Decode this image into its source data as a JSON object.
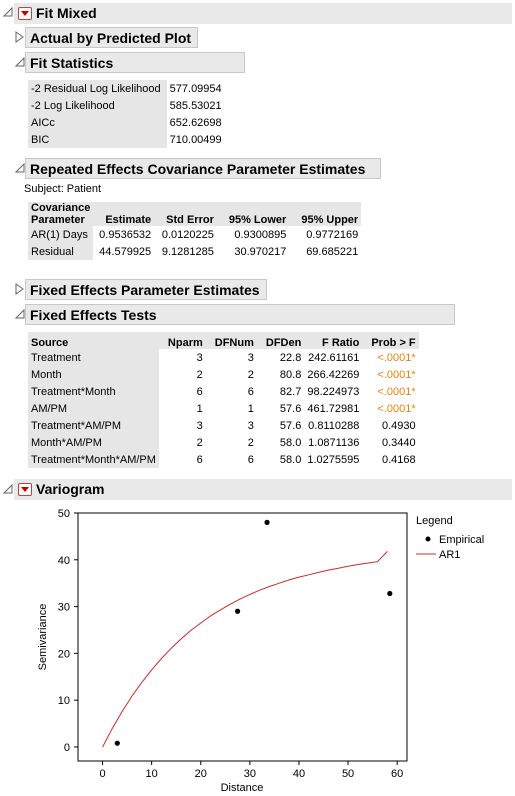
{
  "title": "Fit Mixed",
  "sections": {
    "actual_by_predicted": "Actual by Predicted Plot",
    "fit_statistics": "Fit Statistics",
    "repeated_effects": "Repeated Effects Covariance Parameter Estimates",
    "fixed_params": "Fixed Effects Parameter Estimates",
    "fixed_tests": "Fixed Effects Tests",
    "variogram": "Variogram"
  },
  "fit_statistics": [
    {
      "label": "-2 Residual Log Likelihood",
      "value": "577.09954"
    },
    {
      "label": "-2 Log Likelihood",
      "value": "585.53021"
    },
    {
      "label": "AICc",
      "value": "652.62698"
    },
    {
      "label": "BIC",
      "value": "710.00499"
    }
  ],
  "subject": "Subject: Patient",
  "cov_table": {
    "headers": [
      "Covariance\nParameter",
      "Estimate",
      "Std Error",
      "95% Lower",
      "95% Upper"
    ],
    "rows": [
      [
        "AR(1) Days",
        "0.9536532",
        "0.0120225",
        "0.9300895",
        "0.9772169"
      ],
      [
        "Residual",
        "44.579925",
        "9.1281285",
        "30.970217",
        "69.685221"
      ]
    ]
  },
  "tests_table": {
    "headers": [
      "Source",
      "Nparm",
      "DFNum",
      "DFDen",
      "F Ratio",
      "Prob > F"
    ],
    "rows": [
      [
        "Treatment",
        "3",
        "3",
        "22.8",
        "242.61161",
        "<.0001*"
      ],
      [
        "Month",
        "2",
        "2",
        "80.8",
        "266.42269",
        "<.0001*"
      ],
      [
        "Treatment*Month",
        "6",
        "6",
        "82.7",
        "98.224973",
        "<.0001*"
      ],
      [
        "AM/PM",
        "1",
        "1",
        "57.6",
        "461.72981",
        "<.0001*"
      ],
      [
        "Treatment*AM/PM",
        "3",
        "3",
        "57.6",
        "0.8110288",
        "0.4930"
      ],
      [
        "Month*AM/PM",
        "2",
        "2",
        "58.0",
        "1.0871136",
        "0.3440"
      ],
      [
        "Treatment*Month*AM/PM",
        "6",
        "6",
        "58.0",
        "1.0275595",
        "0.4168"
      ]
    ],
    "significant_color": "#e8830a"
  },
  "chart_data": {
    "type": "scatter",
    "xlabel": "Distance",
    "ylabel": "Semivariance",
    "xlim": [
      -5,
      62
    ],
    "ylim": [
      -3,
      50
    ],
    "xticks": [
      0,
      10,
      20,
      30,
      40,
      50,
      60
    ],
    "yticks": [
      0,
      10,
      20,
      30,
      40,
      50
    ],
    "legend_title": "Legend",
    "legend_placement": "right",
    "series": [
      {
        "name": "Empirical",
        "kind": "points",
        "color": "#000000",
        "x": [
          3,
          27.5,
          33.5,
          58.5
        ],
        "y": [
          0.8,
          29,
          48,
          32.8
        ]
      },
      {
        "name": "AR1",
        "kind": "line",
        "color": "#d62728",
        "x": [
          0,
          2,
          4,
          6,
          8,
          10,
          12,
          14,
          16,
          18,
          20,
          22,
          24,
          26,
          28,
          30,
          32,
          34,
          36,
          38,
          40,
          42,
          44,
          46,
          48,
          50,
          52,
          54,
          56,
          58
        ],
        "y": [
          0,
          4.0,
          7.6,
          10.9,
          13.8,
          16.5,
          18.9,
          21.1,
          23.1,
          24.9,
          26.5,
          28.0,
          29.3,
          30.5,
          31.6,
          32.6,
          33.5,
          34.3,
          35.0,
          35.7,
          36.3,
          36.8,
          37.3,
          37.8,
          38.2,
          38.6,
          39.0,
          39.3,
          39.6,
          41.8
        ]
      }
    ]
  }
}
